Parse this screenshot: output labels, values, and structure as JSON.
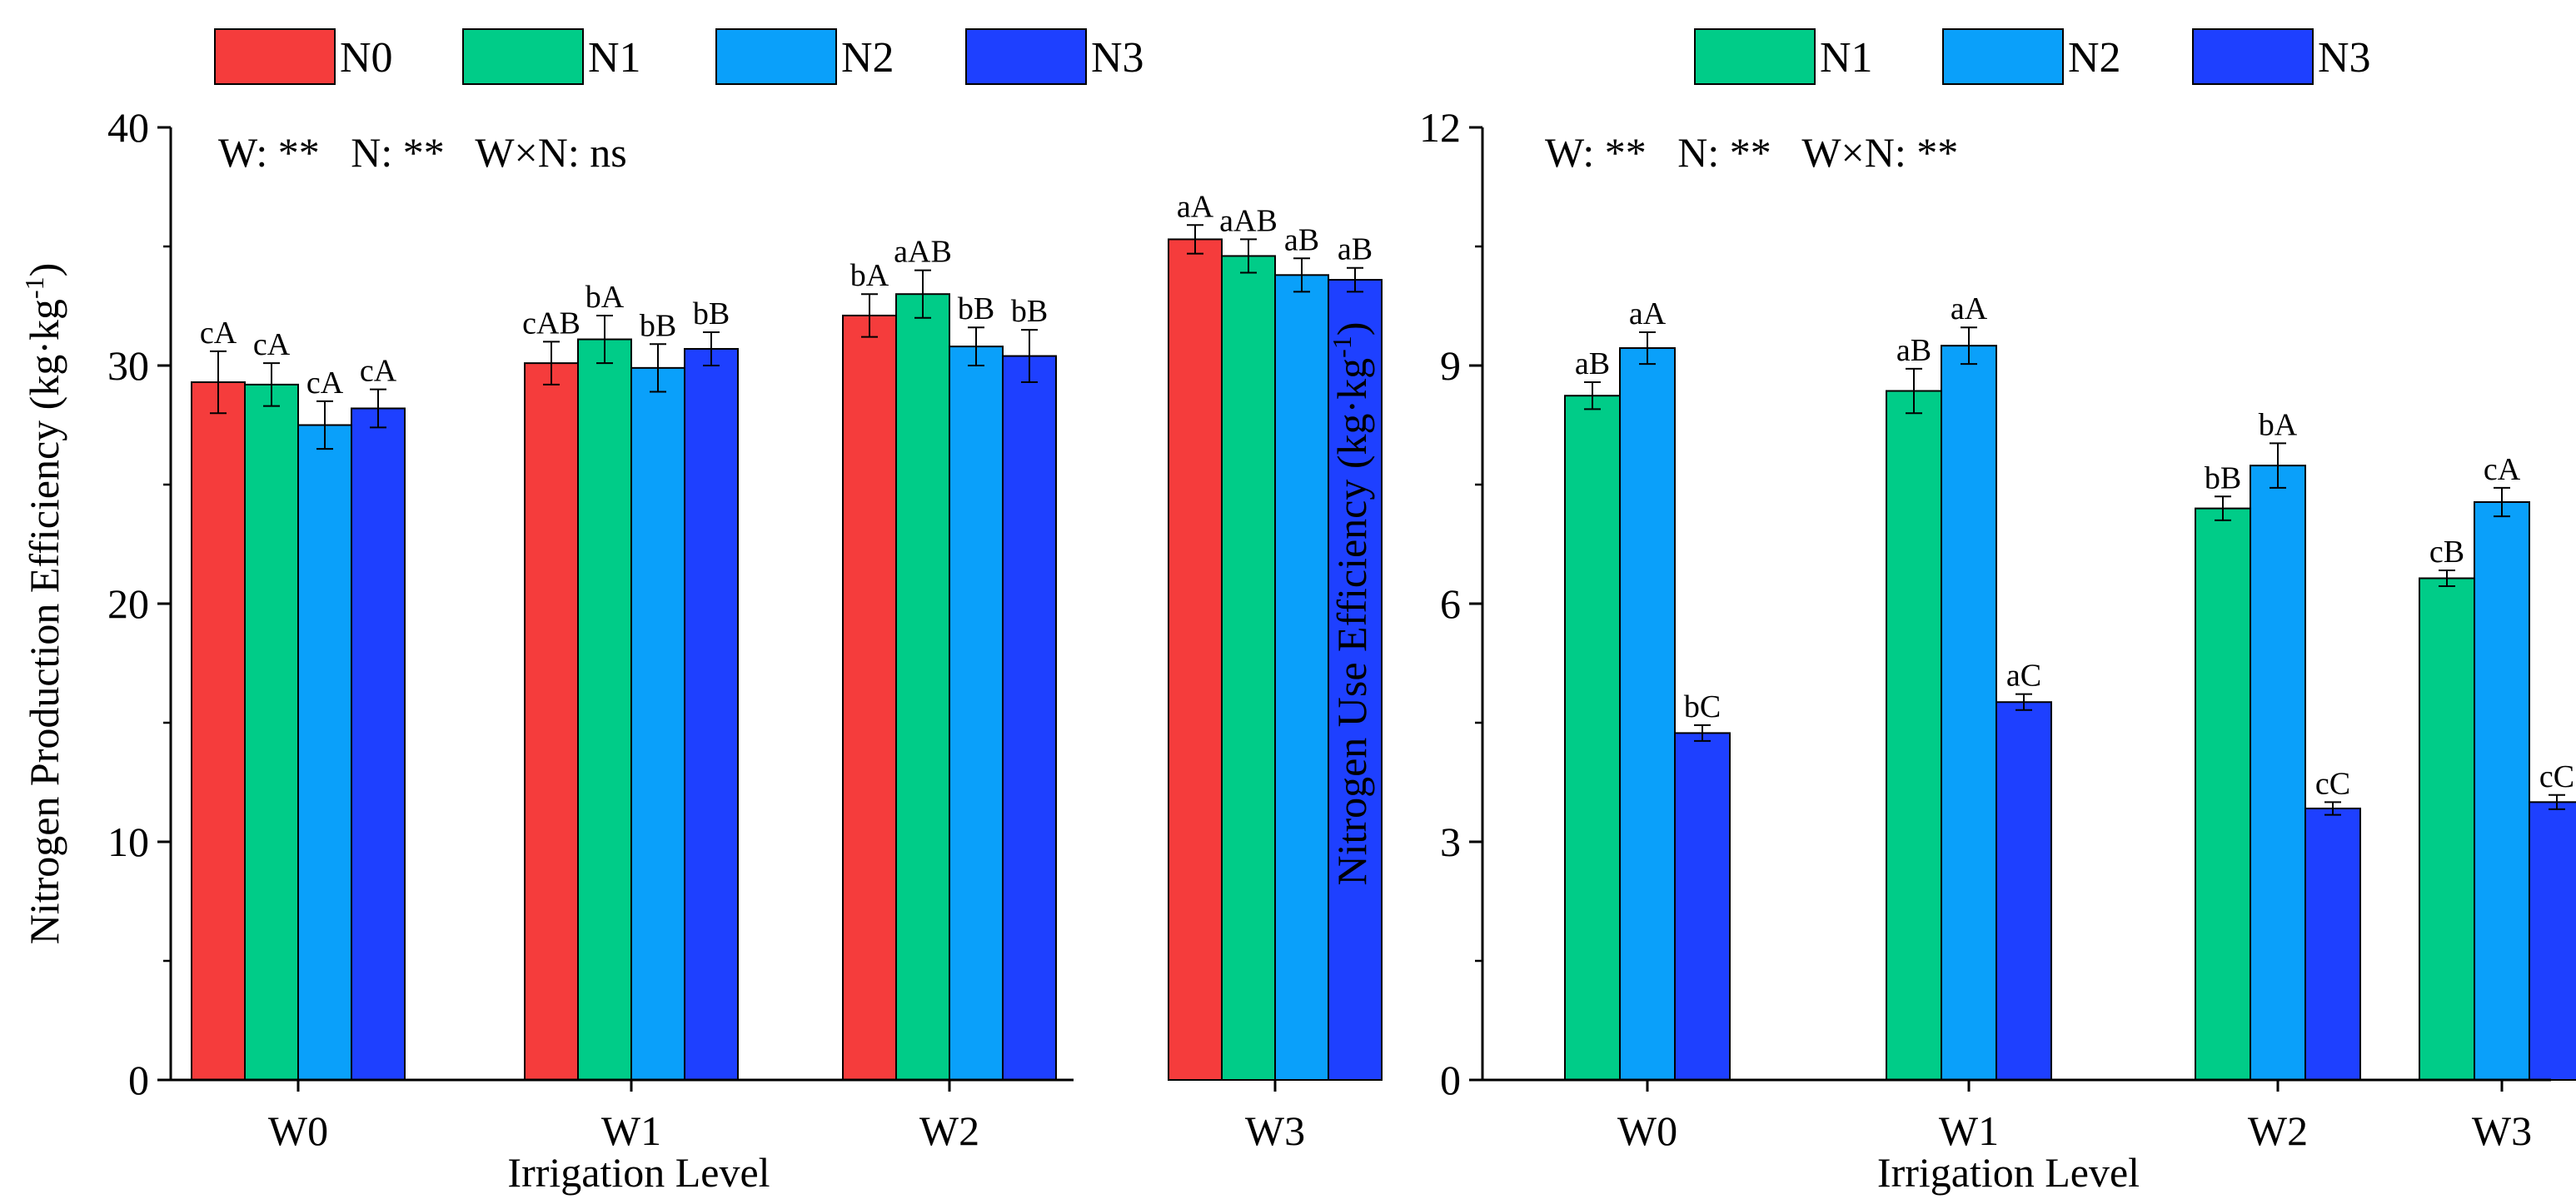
{
  "chart_data": [
    {
      "type": "bar",
      "title": "",
      "xlabel": "Irrigation Level",
      "ylabel": "Nitrogen Production Efficiency (kg·kg",
      "ylabel_sup": "-1",
      "ylabel_close": ")",
      "ylim": [
        0,
        40
      ],
      "yticks": [
        0,
        10,
        20,
        30,
        40
      ],
      "ytick_labels": [
        "0",
        "10",
        "20",
        "30",
        "40"
      ],
      "categories": [
        "W0",
        "W1",
        "W2",
        "W3"
      ],
      "annotation": "W: **   N: **   W×N: ns",
      "legend": "top",
      "series": [
        {
          "name": "N0",
          "color": "#F53C3C",
          "values": [
            29.3,
            30.1,
            32.1,
            35.3
          ],
          "errors": [
            1.3,
            0.9,
            0.9,
            0.6
          ],
          "labels": [
            "cA",
            "cAB",
            "bA",
            "aA"
          ]
        },
        {
          "name": "N1",
          "color": "#00CC88",
          "values": [
            29.2,
            31.1,
            33.0,
            34.6
          ],
          "errors": [
            0.9,
            1.0,
            1.0,
            0.7
          ],
          "labels": [
            "cA",
            "bA",
            "aAB",
            "aAB"
          ]
        },
        {
          "name": "N2",
          "color": "#0AA0FA",
          "values": [
            27.5,
            29.9,
            30.8,
            33.8
          ],
          "errors": [
            1.0,
            1.0,
            0.8,
            0.7
          ],
          "labels": [
            "cA",
            "bB",
            "bB",
            "aB"
          ]
        },
        {
          "name": "N3",
          "color": "#1E40FF",
          "values": [
            28.2,
            30.7,
            30.4,
            33.6
          ],
          "errors": [
            0.8,
            0.7,
            1.1,
            0.5
          ],
          "labels": [
            "cA",
            "bB",
            "bB",
            "aB"
          ]
        }
      ]
    },
    {
      "type": "bar",
      "title": "",
      "xlabel": "Irrigation Level",
      "ylabel": "Nitrogen Use Efficiency (kg·kg",
      "ylabel_sup": "-1",
      "ylabel_close": ")",
      "ylim": [
        0,
        12
      ],
      "yticks": [
        0,
        3,
        6,
        9,
        12
      ],
      "ytick_labels": [
        "0",
        "3",
        "6",
        "9",
        "12"
      ],
      "categories": [
        "W0",
        "W1",
        "W2",
        "W3"
      ],
      "annotation": "W: **   N: **   W×N: **",
      "legend": "top",
      "series": [
        {
          "name": "N1",
          "color": "#00CC88",
          "values": [
            8.62,
            8.68,
            7.2,
            6.32
          ],
          "errors": [
            0.17,
            0.28,
            0.15,
            0.1
          ],
          "labels": [
            "aB",
            "aB",
            "bB",
            "cB"
          ]
        },
        {
          "name": "N2",
          "color": "#0AA0FA",
          "values": [
            9.22,
            9.25,
            7.74,
            7.28
          ],
          "errors": [
            0.2,
            0.23,
            0.28,
            0.18
          ],
          "labels": [
            "aA",
            "aA",
            "bA",
            "cA"
          ]
        },
        {
          "name": "N3",
          "color": "#1E40FF",
          "values": [
            4.37,
            4.76,
            3.42,
            3.5
          ],
          "errors": [
            0.1,
            0.1,
            0.08,
            0.09
          ],
          "labels": [
            "bC",
            "aC",
            "cC",
            "cC"
          ]
        }
      ]
    }
  ]
}
